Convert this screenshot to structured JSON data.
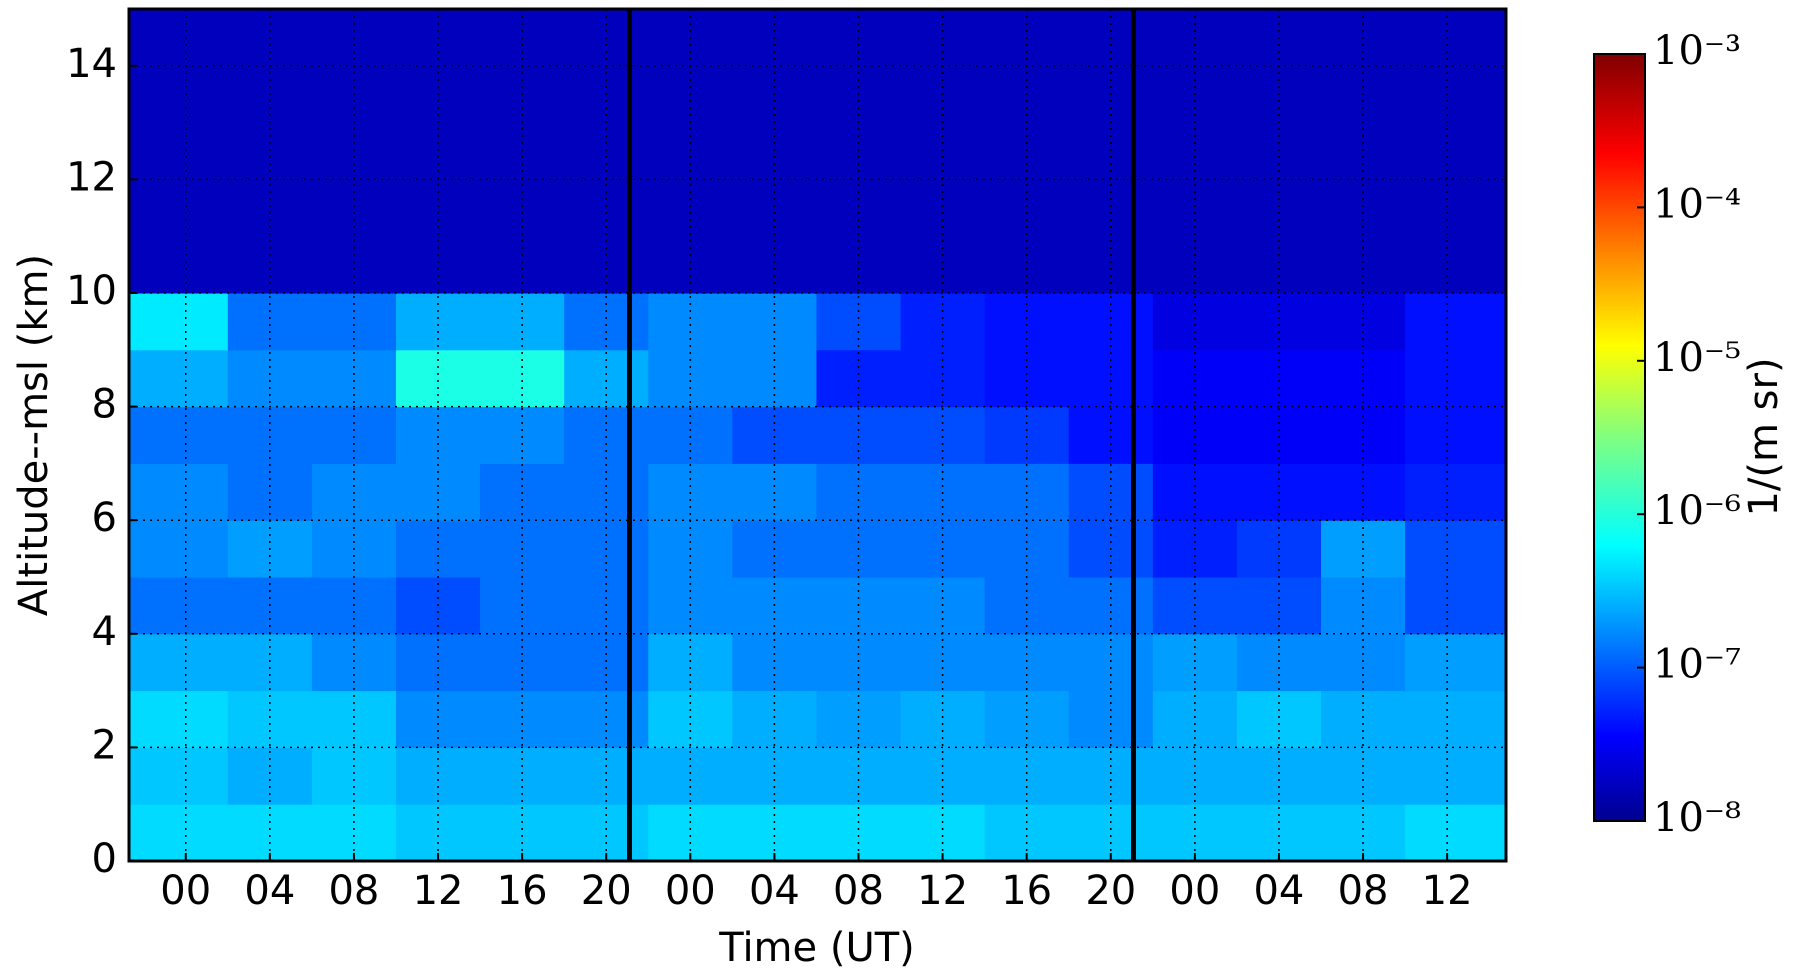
{
  "chart_data": {
    "type": "heatmap",
    "xlabel": "Time (UT)",
    "ylabel": "Altitude--msl (km)",
    "colorbar_label": "1/(m sr)",
    "colormap": "jet",
    "color_log": true,
    "grid": true,
    "xlim": [
      -2.7,
      62.8
    ],
    "ylim": [
      0,
      15
    ],
    "clim": [
      1e-08,
      0.001
    ],
    "xticks": [
      {
        "value": 0,
        "label": "00"
      },
      {
        "value": 4,
        "label": "04"
      },
      {
        "value": 8,
        "label": "08"
      },
      {
        "value": 12,
        "label": "12"
      },
      {
        "value": 16,
        "label": "16"
      },
      {
        "value": 20,
        "label": "20"
      },
      {
        "value": 24,
        "label": "00"
      },
      {
        "value": 28,
        "label": "04"
      },
      {
        "value": 32,
        "label": "08"
      },
      {
        "value": 36,
        "label": "12"
      },
      {
        "value": 40,
        "label": "16"
      },
      {
        "value": 44,
        "label": "20"
      },
      {
        "value": 48,
        "label": "00"
      },
      {
        "value": 52,
        "label": "04"
      },
      {
        "value": 56,
        "label": "08"
      },
      {
        "value": 60,
        "label": "12"
      }
    ],
    "yticks": [
      0,
      2,
      4,
      6,
      8,
      10,
      12,
      14
    ],
    "cticks": [
      {
        "value": 1e-08,
        "label": "10⁻⁸"
      },
      {
        "value": 1e-07,
        "label": "10⁻⁷"
      },
      {
        "value": 1e-06,
        "label": "10⁻⁶"
      },
      {
        "value": 1e-05,
        "label": "10⁻⁵"
      },
      {
        "value": 0.0001,
        "label": "10⁻⁴"
      },
      {
        "value": 0.001,
        "label": "10⁻³"
      }
    ],
    "x": [
      0,
      4,
      8,
      12,
      16,
      20,
      24,
      28,
      32,
      36,
      40,
      44,
      48,
      52,
      56,
      60
    ],
    "y": [
      0.5,
      1.5,
      2.5,
      3.5,
      4.5,
      5.5,
      6.5,
      7.5,
      8.5,
      9.5,
      10.5,
      11.5,
      12.5,
      13.5,
      14.5
    ],
    "z": [
      [
        5e-07,
        5e-07,
        5e-07,
        4e-07,
        4e-07,
        4e-07,
        5e-07,
        5e-07,
        5e-07,
        5e-07,
        4e-07,
        4e-07,
        4e-07,
        4e-07,
        4e-07,
        5e-07
      ],
      [
        4e-07,
        3e-07,
        4e-07,
        3e-07,
        3e-07,
        3e-07,
        3e-07,
        3e-07,
        3e-07,
        3e-07,
        3e-07,
        3e-07,
        3e-07,
        3e-07,
        3e-07,
        3e-07
      ],
      [
        5e-07,
        4e-07,
        4e-07,
        2e-07,
        2e-07,
        2e-07,
        4e-07,
        3e-07,
        2.5e-07,
        3e-07,
        2.5e-07,
        2e-07,
        3e-07,
        4e-07,
        3e-07,
        3e-07
      ],
      [
        3e-07,
        3e-07,
        2e-07,
        1.5e-07,
        1.5e-07,
        1.5e-07,
        3e-07,
        2e-07,
        2e-07,
        2e-07,
        2e-07,
        2e-07,
        2.5e-07,
        2e-07,
        2e-07,
        2.5e-07
      ],
      [
        1.5e-07,
        1.5e-07,
        1.5e-07,
        1e-07,
        1.5e-07,
        1.5e-07,
        2e-07,
        2e-07,
        2e-07,
        2e-07,
        1.5e-07,
        1.5e-07,
        1e-07,
        1e-07,
        2e-07,
        1e-07
      ],
      [
        2e-07,
        2.5e-07,
        2e-07,
        1.5e-07,
        1.5e-07,
        1.5e-07,
        2e-07,
        1.5e-07,
        1.5e-07,
        1.5e-07,
        1.5e-07,
        1e-07,
        6e-08,
        8e-08,
        2.5e-07,
        1e-07
      ],
      [
        2e-07,
        1.5e-07,
        2e-07,
        2e-07,
        1.5e-07,
        1.5e-07,
        2e-07,
        2e-07,
        1.5e-07,
        1.5e-07,
        1.5e-07,
        1e-07,
        5e-08,
        5e-08,
        5e-08,
        6e-08
      ],
      [
        1.5e-07,
        1.5e-07,
        1.5e-07,
        2e-07,
        2e-07,
        1.5e-07,
        1.5e-07,
        1e-07,
        1e-07,
        1e-07,
        8e-08,
        5e-08,
        4e-08,
        4e-08,
        4e-08,
        5e-08
      ],
      [
        3e-07,
        2e-07,
        2e-07,
        1e-06,
        1e-06,
        3e-07,
        2e-07,
        2e-07,
        6e-08,
        6e-08,
        5e-08,
        5e-08,
        4e-08,
        4e-08,
        4e-08,
        5e-08
      ],
      [
        6e-07,
        1.5e-07,
        1.5e-07,
        3e-07,
        3e-07,
        1.5e-07,
        2e-07,
        2e-07,
        1e-07,
        6e-08,
        5e-08,
        5e-08,
        3e-08,
        3e-08,
        3e-08,
        5e-08
      ],
      [
        2e-08,
        2e-08,
        2e-08,
        2e-08,
        2e-08,
        2e-08,
        2e-08,
        2e-08,
        2e-08,
        2e-08,
        2e-08,
        2e-08,
        2e-08,
        2e-08,
        2e-08,
        2e-08
      ],
      [
        2e-08,
        2e-08,
        2e-08,
        2e-08,
        2e-08,
        2e-08,
        2e-08,
        2e-08,
        2e-08,
        2e-08,
        2e-08,
        2e-08,
        2e-08,
        2e-08,
        2e-08,
        2e-08
      ],
      [
        2e-08,
        2e-08,
        2e-08,
        2e-08,
        2e-08,
        2e-08,
        2e-08,
        2e-08,
        2e-08,
        2e-08,
        2e-08,
        2e-08,
        2e-08,
        2e-08,
        2e-08,
        2e-08
      ],
      [
        2e-08,
        2e-08,
        2e-08,
        2e-08,
        2e-08,
        2e-08,
        2e-08,
        2e-08,
        2e-08,
        2e-08,
        2e-08,
        2e-08,
        2e-08,
        2e-08,
        2e-08,
        2e-08
      ],
      [
        2e-08,
        2e-08,
        2e-08,
        2e-08,
        2e-08,
        2e-08,
        2e-08,
        2e-08,
        2e-08,
        2e-08,
        2e-08,
        2e-08,
        2e-08,
        2e-08,
        2e-08,
        2e-08
      ]
    ]
  }
}
